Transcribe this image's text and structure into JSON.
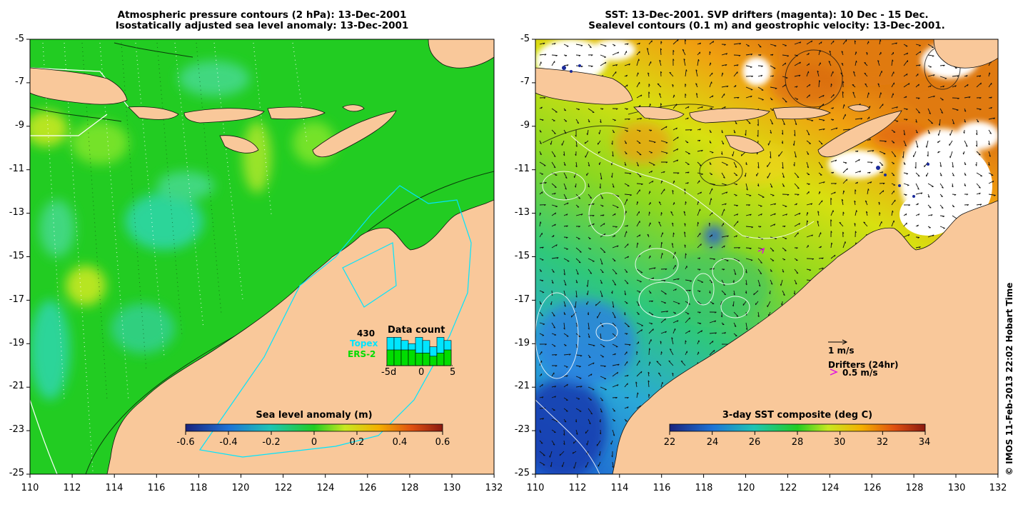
{
  "left_panel": {
    "title_line1": "Atmospheric pressure contours (2 hPa): 13-Dec-2001",
    "title_line2": "Isostatically adjusted sea level anomaly: 13-Dec-2001",
    "y_ticks": [
      "-5",
      "-7",
      "-9",
      "-11",
      "-13",
      "-15",
      "-17",
      "-19",
      "-21",
      "-23",
      "-25"
    ],
    "x_ticks": [
      "110",
      "112",
      "114",
      "116",
      "118",
      "120",
      "122",
      "124",
      "126",
      "128",
      "130",
      "132"
    ],
    "colorbar": {
      "title": "Sea level anomaly (m)",
      "ticks": [
        "-0.6",
        "-0.4",
        "-0.2",
        "0",
        "0.2",
        "0.4",
        "0.6"
      ]
    },
    "data_count": {
      "title": "Data count",
      "count": "430",
      "topex_label": "Topex",
      "ers_label": "ERS-2",
      "axis_ticks": [
        "-5d",
        "0",
        "5"
      ],
      "topex_values": [
        9,
        9,
        8,
        7,
        9,
        8,
        6,
        9,
        8
      ],
      "ers_values": [
        5,
        5,
        5,
        5,
        4,
        4,
        3,
        4,
        5
      ]
    }
  },
  "right_panel": {
    "title_line1": "SST: 13-Dec-2001. SVP drifters (magenta): 10 Dec - 15 Dec.",
    "title_line2": "Sealevel contours (0.1 m) and geostrophic velocity: 13-Dec-2001.",
    "y_ticks": [
      "-5",
      "-7",
      "-9",
      "-11",
      "-13",
      "-15",
      "-17",
      "-19",
      "-21",
      "-23",
      "-25"
    ],
    "x_ticks": [
      "110",
      "112",
      "114",
      "116",
      "118",
      "120",
      "122",
      "124",
      "126",
      "128",
      "130",
      "132"
    ],
    "colorbar": {
      "title": "3-day SST composite (deg C)",
      "ticks": [
        "22",
        "24",
        "26",
        "28",
        "30",
        "32",
        "34"
      ]
    },
    "velocity_scale": "1 m/s",
    "drifters_label": "Drifters (24hr)",
    "drifters_speed": "0.5 m/s"
  },
  "copyright": "© IMOS 11-Feb-2013 22:02 Hobart Time",
  "colors": {
    "land": "#f9c89a",
    "sla_ocean": "#22cc22",
    "sla_light": "#7ee52a",
    "sla_cyan": "#2ed6a6",
    "topex": "#00e5ff",
    "ers": "#00dd00",
    "drifter": "#e010e0"
  }
}
